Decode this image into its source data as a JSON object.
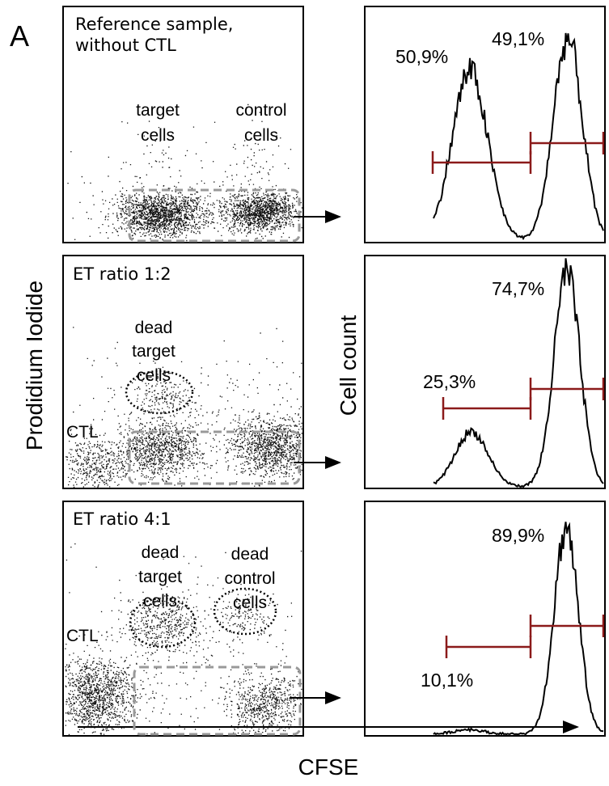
{
  "panel_letter": "A",
  "y_axis_label_left": "Prodidium Iodide",
  "y_axis_label_right": "Cell count",
  "x_axis_label": "CFSE",
  "colors": {
    "gate": "#8b1a1a",
    "gate_box": "#999999",
    "ink": "#000000"
  },
  "chart_data": [
    {
      "type": "scatter",
      "title_lines": [
        "Reference sample,",
        "without CTL"
      ],
      "labels": [
        {
          "lines": [
            "target",
            "cells"
          ]
        },
        {
          "lines": [
            "control",
            "cells"
          ]
        }
      ]
    },
    {
      "type": "area",
      "histogram": [
        {
          "label": "50,9%",
          "value": 50.9
        },
        {
          "label": "49,1%",
          "value": 49.1
        }
      ]
    },
    {
      "type": "scatter",
      "title_lines": [
        "ET ratio 1:2"
      ],
      "labels": [
        {
          "lines": [
            "dead",
            "target",
            "cells"
          ]
        },
        {
          "lines": [
            "CTL"
          ]
        }
      ]
    },
    {
      "type": "area",
      "histogram": [
        {
          "label": "25,3%",
          "value": 25.3
        },
        {
          "label": "74,7%",
          "value": 74.7
        }
      ]
    },
    {
      "type": "scatter",
      "title_lines": [
        "ET ratio 4:1"
      ],
      "labels": [
        {
          "lines": [
            "dead",
            "target",
            "cells"
          ]
        },
        {
          "lines": [
            "dead",
            "control",
            "cells"
          ]
        },
        {
          "lines": [
            "CTL"
          ]
        }
      ]
    },
    {
      "type": "area",
      "histogram": [
        {
          "label": "10,1%",
          "value": 10.1
        },
        {
          "label": "89,9%",
          "value": 89.9
        }
      ]
    }
  ]
}
